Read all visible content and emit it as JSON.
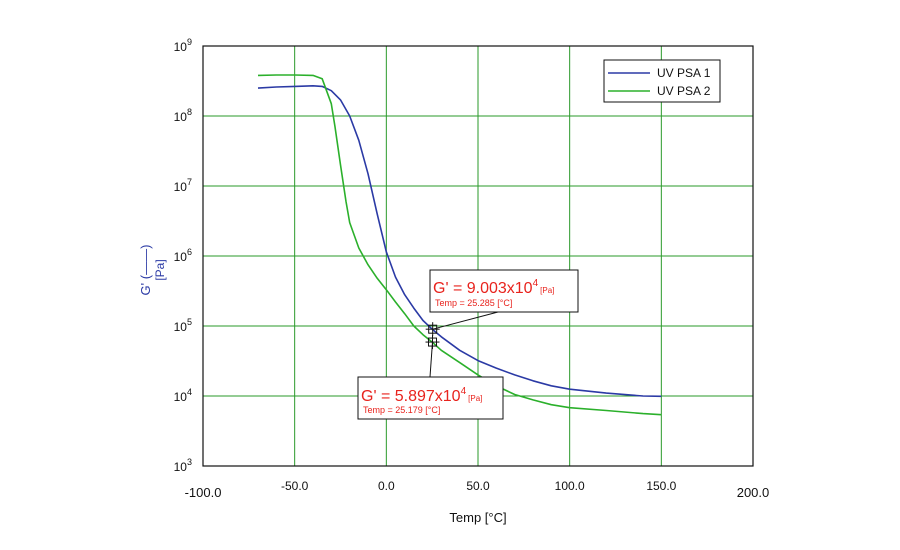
{
  "chart_data": {
    "type": "line",
    "xlabel": "Temp [°C]",
    "ylabel": "G' (——)",
    "ylabel_unit": "[Pa]",
    "xlim": [
      -100,
      200
    ],
    "ylim": [
      1000,
      1000000000
    ],
    "y_scale": "log",
    "x_ticks": [
      "-100.0",
      "-50.0",
      "0.0",
      "50.0",
      "100.0",
      "150.0",
      "200.0"
    ],
    "x_tick_values": [
      -100,
      -50,
      0,
      50,
      100,
      150,
      200
    ],
    "y_tick_values": [
      1000,
      10000,
      100000,
      1000000,
      10000000,
      100000000,
      1000000000
    ],
    "y_ticks": [
      {
        "base": "10",
        "exp": "3"
      },
      {
        "base": "10",
        "exp": "4"
      },
      {
        "base": "10",
        "exp": "5"
      },
      {
        "base": "10",
        "exp": "6"
      },
      {
        "base": "10",
        "exp": "7"
      },
      {
        "base": "10",
        "exp": "8"
      },
      {
        "base": "10",
        "exp": "9"
      }
    ],
    "grid": true,
    "legend_position": "top-right",
    "series": [
      {
        "name": "UV PSA 1",
        "color": "#2b3aa5",
        "x": [
          -70,
          -60,
          -50,
          -40,
          -35,
          -30,
          -25,
          -20,
          -15,
          -10,
          -5,
          0,
          5,
          10,
          15,
          20,
          25,
          30,
          40,
          50,
          60,
          70,
          80,
          90,
          100,
          120,
          140,
          150
        ],
        "y": [
          250000000,
          260000000,
          265000000,
          270000000,
          265000000,
          230000000,
          170000000,
          100000000,
          45000000,
          15000000,
          4000000,
          1150000,
          500000,
          280000,
          180000,
          120000,
          90000,
          70000,
          45000,
          32000,
          25000,
          20000,
          16500,
          14000,
          12500,
          11000,
          10000,
          9900
        ]
      },
      {
        "name": "UV PSA 2",
        "color": "#2bb02b",
        "x": [
          -70,
          -60,
          -50,
          -40,
          -35,
          -30,
          -28,
          -25,
          -22,
          -20,
          -15,
          -10,
          -5,
          0,
          5,
          10,
          15,
          20,
          25,
          30,
          40,
          50,
          60,
          70,
          80,
          90,
          100,
          120,
          140,
          150
        ],
        "y": [
          380000000,
          385000000,
          385000000,
          380000000,
          340000000,
          150000000,
          70000000,
          20000000,
          6000000,
          3000000,
          1300000,
          750000,
          480000,
          330000,
          220000,
          150000,
          100000,
          75000,
          58970,
          45000,
          30000,
          20000,
          14000,
          10500,
          8800,
          7500,
          6800,
          6200,
          5600,
          5400
        ]
      }
    ],
    "annotations": [
      {
        "prefix": "G' = 9.003x10",
        "exp": "4",
        "unit": "[Pa]",
        "temp_label": "Temp = 25.285 [°C]",
        "point": {
          "x": 25.285,
          "y": 90030
        }
      },
      {
        "prefix": "G' = 5.897x10",
        "exp": "4",
        "unit": "[Pa]",
        "temp_label": "Temp = 25.179 [°C]",
        "point": {
          "x": 25.179,
          "y": 58970
        }
      }
    ]
  }
}
